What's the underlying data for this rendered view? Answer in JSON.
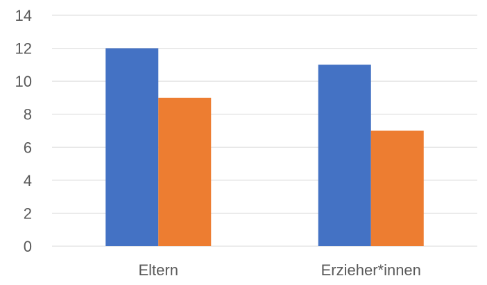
{
  "chart_data": {
    "type": "bar",
    "title": "",
    "xlabel": "",
    "ylabel": "",
    "categories": [
      "Eltern",
      "Erzieher*innen"
    ],
    "series": [
      {
        "values": [
          12,
          11
        ],
        "color": "#4472c4"
      },
      {
        "values": [
          9,
          7
        ],
        "color": "#ed7d31"
      }
    ],
    "ylim": [
      0,
      14
    ],
    "yticks": [
      0,
      2,
      4,
      6,
      8,
      10,
      12,
      14
    ],
    "grid": true,
    "legend": "none"
  }
}
